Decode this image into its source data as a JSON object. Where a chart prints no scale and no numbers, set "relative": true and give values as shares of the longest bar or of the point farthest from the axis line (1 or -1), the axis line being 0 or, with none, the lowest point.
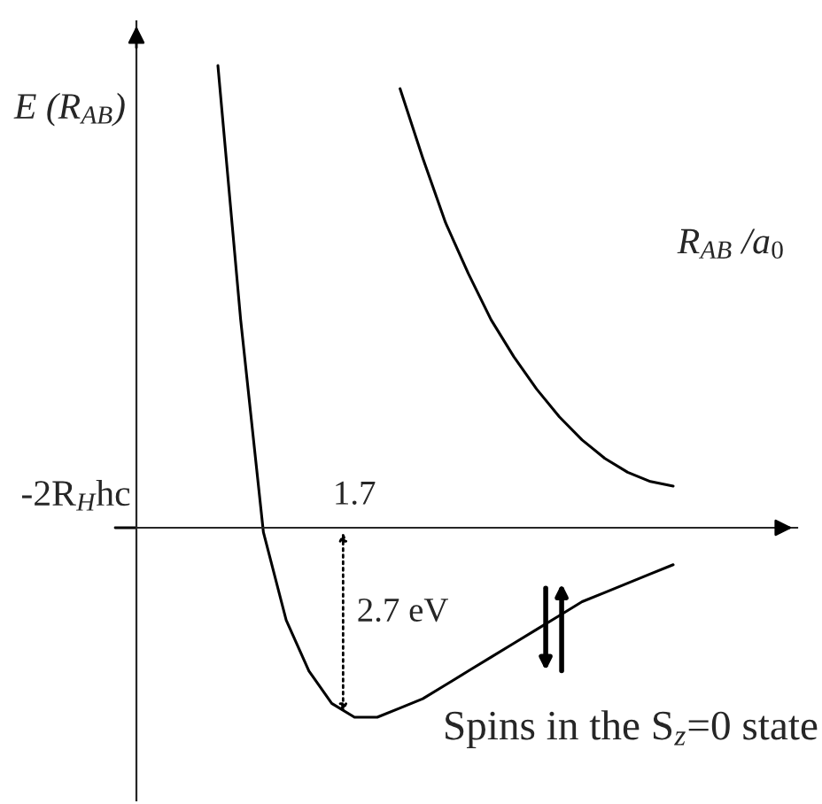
{
  "chart_data": {
    "type": "line",
    "relative": true,
    "xlabel": "R$_{AB}$ /a$_{0}$",
    "ylabel": "E (R$_{AB}$)",
    "categories": [
      null,
      null,
      null,
      null,
      null,
      null,
      null,
      null,
      null,
      null,
      null,
      null,
      null,
      null,
      null,
      null,
      null,
      null,
      null,
      null,
      null
    ],
    "series": [
      {
        "color": "#000000",
        "values": [
          1.0,
          0.45,
          -0.01,
          -0.2,
          -0.31,
          -0.38,
          -0.41,
          -0.41,
          -0.39,
          -0.37,
          -0.34,
          -0.31,
          -0.28,
          -0.25,
          -0.22,
          -0.19,
          -0.16,
          -0.14,
          -0.12,
          -0.1,
          -0.08
        ]
      },
      {
        "color": "#000000",
        "values": [
          null,
          null,
          null,
          null,
          null,
          null,
          null,
          null,
          0.95,
          0.8,
          0.66,
          0.55,
          0.45,
          0.37,
          0.3,
          0.24,
          0.19,
          0.15,
          0.12,
          0.1,
          0.09
        ]
      }
    ],
    "annotations": [
      "1.7",
      "2.7 eV",
      "-2R$_{H}$hc",
      "Spins in the S$_{z}$=0 state"
    ],
    "legend": false,
    "marker": "none",
    "line_style": "solid"
  }
}
